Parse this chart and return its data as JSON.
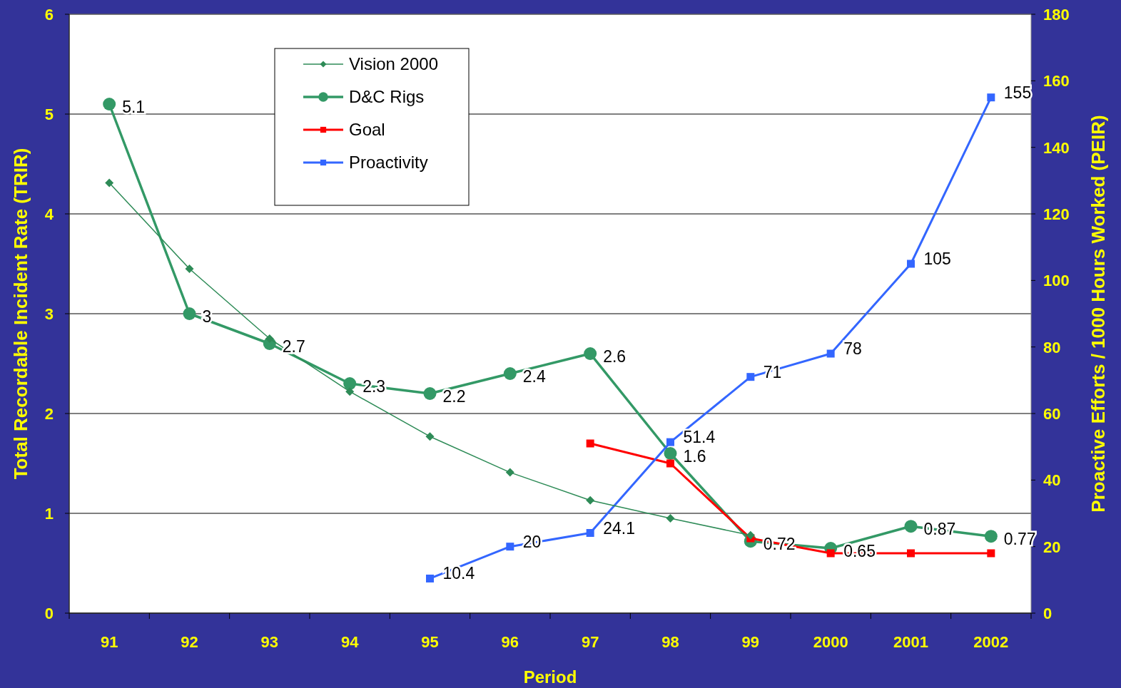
{
  "chart_data": {
    "type": "line",
    "xlabel": "Period",
    "ylabel": "Total Recordable Incident Rate (TRIR)",
    "y2label": "Proactive Efforts / 1000 Hours Worked (PEIR)",
    "categories": [
      "91",
      "92",
      "93",
      "94",
      "95",
      "96",
      "97",
      "98",
      "99",
      "2000",
      "2001",
      "2002"
    ],
    "series": [
      {
        "name": "Vision 2000",
        "color": "#2e8b57",
        "marker": "diamond",
        "values": [
          4.31,
          3.45,
          2.75,
          2.22,
          1.77,
          1.41,
          1.13,
          0.95,
          0.78,
          null,
          null,
          null
        ]
      },
      {
        "name": "D&C Rigs",
        "color": "#339966",
        "marker": "circle",
        "values": [
          5.1,
          3,
          2.7,
          2.3,
          2.2,
          2.4,
          2.6,
          1.6,
          0.72,
          0.65,
          0.87,
          0.77
        ],
        "value_labels": [
          "5.1",
          "3",
          "2.7",
          "2.3",
          "2.2",
          "2.4",
          "2.6",
          "1.6",
          "0.72",
          "0.65",
          "0.87",
          "0.77"
        ]
      },
      {
        "name": "Goal",
        "color": "#ff0000",
        "marker": "square",
        "values": [
          null,
          null,
          null,
          null,
          null,
          null,
          1.7,
          1.5,
          0.75,
          0.6,
          0.6,
          0.6
        ]
      },
      {
        "name": "Proactivity",
        "color": "#3366ff",
        "marker": "square",
        "axis": "y2",
        "values": [
          null,
          null,
          null,
          null,
          10.4,
          20,
          24.1,
          51.4,
          71,
          78,
          105,
          155
        ],
        "value_labels": [
          null,
          null,
          null,
          null,
          "10.4",
          "20",
          "24.1",
          "51.4",
          "71",
          "78",
          "105",
          "155"
        ]
      }
    ],
    "ylim": [
      0,
      6
    ],
    "yticks": [
      0,
      1,
      2,
      3,
      4,
      5,
      6
    ],
    "y2lim": [
      0,
      180
    ],
    "y2ticks": [
      0,
      20,
      40,
      60,
      80,
      100,
      120,
      140,
      160,
      180
    ],
    "grid": "y",
    "legend": "top left"
  }
}
